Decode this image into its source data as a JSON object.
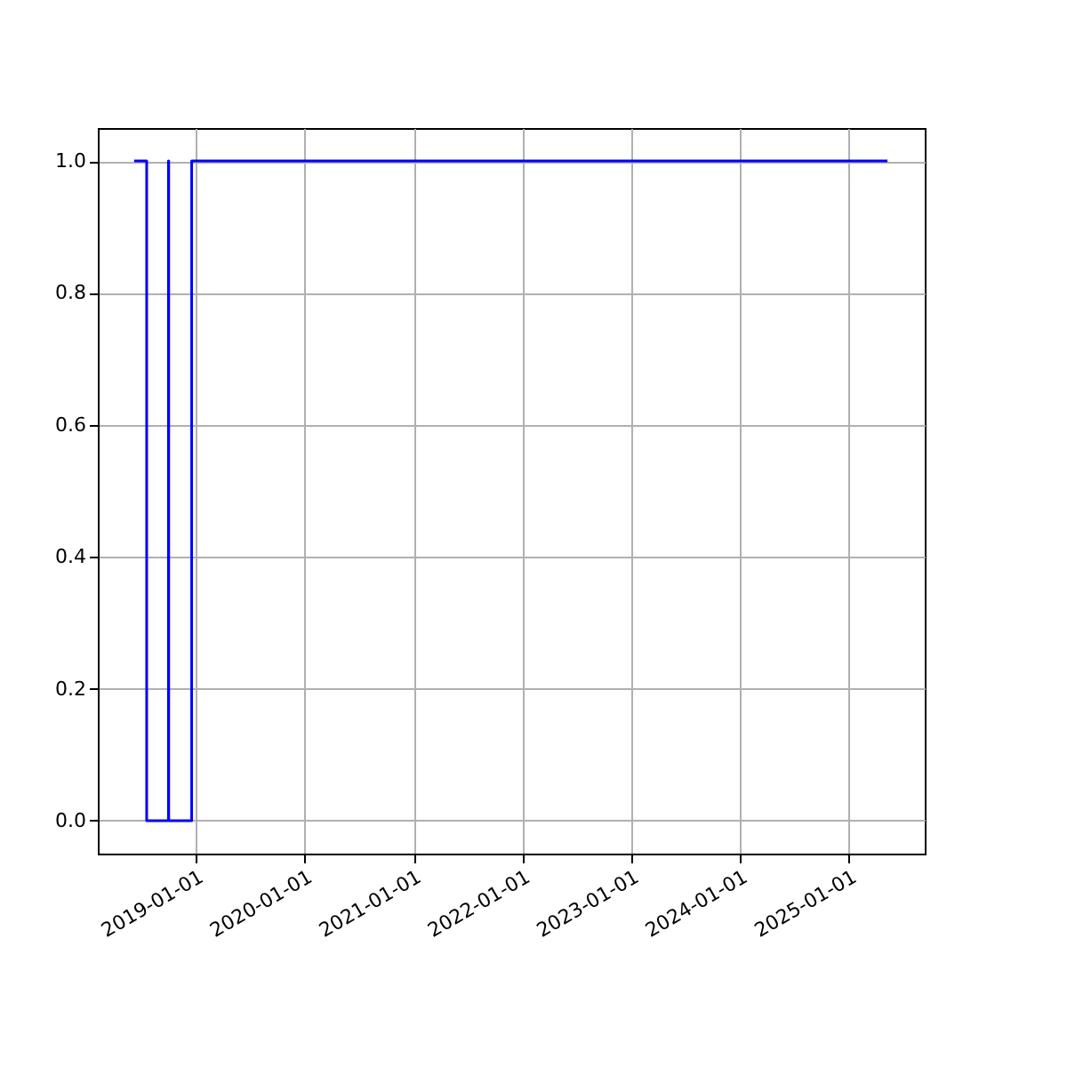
{
  "chart_data": {
    "type": "step",
    "x": [
      "2018-06-08",
      "2018-07-20",
      "2018-10-01",
      "2018-10-02",
      "2018-12-18",
      "2025-05-10"
    ],
    "series": [
      {
        "color": "#0000ff",
        "values": [
          1,
          0,
          1,
          0,
          1,
          1
        ]
      }
    ],
    "xlim": [
      "2018-02-06",
      "2025-09-12"
    ],
    "xticks": [
      "2019-01-01",
      "2020-01-01",
      "2021-01-01",
      "2022-01-01",
      "2023-01-01",
      "2024-01-01",
      "2025-01-01"
    ],
    "ylim": [
      -0.05,
      1.05
    ],
    "yticks": [
      {
        "value": 0,
        "label": "0.0"
      },
      {
        "value": 0.2,
        "label": "0.2"
      },
      {
        "value": 0.4,
        "label": "0.4"
      },
      {
        "value": 0.6,
        "label": "0.6"
      },
      {
        "value": 0.8,
        "label": "0.8"
      },
      {
        "value": 1,
        "label": "1.0"
      }
    ],
    "grid": true,
    "line_style": "solid",
    "marker": "none"
  }
}
